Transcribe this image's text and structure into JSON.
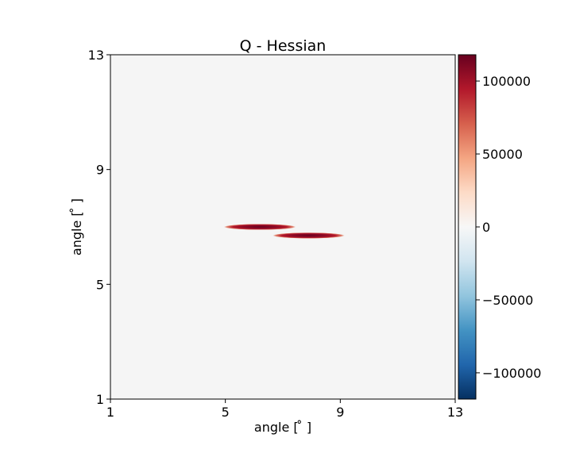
{
  "chart_data": {
    "type": "heatmap",
    "title": "Q - Hessian",
    "xlabel": "angle [$^\\circ$]",
    "ylabel": "angle [$^\\circ$]",
    "xlabel_display": "angle [ ̊ ]",
    "ylabel_display": "angle [ ̊ ]",
    "xlim": [
      1,
      13
    ],
    "ylim": [
      1,
      13
    ],
    "xticks": [
      1,
      5,
      9,
      13
    ],
    "yticks": [
      1,
      5,
      9,
      13
    ],
    "grid": false,
    "background_value": 0,
    "features": [
      {
        "x_center": 6.2,
        "y_center": 7.0,
        "x_halfwidth": 1.25,
        "y_halfwidth": 0.09,
        "peak": 118000
      },
      {
        "x_center": 7.9,
        "y_center": 6.7,
        "x_halfwidth": 1.25,
        "y_halfwidth": 0.09,
        "peak": 118000
      }
    ],
    "colorbar": {
      "colormap": "RdBu_r",
      "min": -118000,
      "max": 118000,
      "ticks": [
        100000,
        50000,
        0,
        -50000,
        -100000
      ],
      "tick_labels": [
        "100000",
        "50000",
        "0",
        "−50000",
        "−100000"
      ],
      "colors": [
        "#053061",
        "#2166ac",
        "#4393c3",
        "#92c5de",
        "#d1e5f0",
        "#f7f7f7",
        "#fddbc7",
        "#f4a582",
        "#d6604d",
        "#b2182b",
        "#67001f"
      ]
    }
  }
}
